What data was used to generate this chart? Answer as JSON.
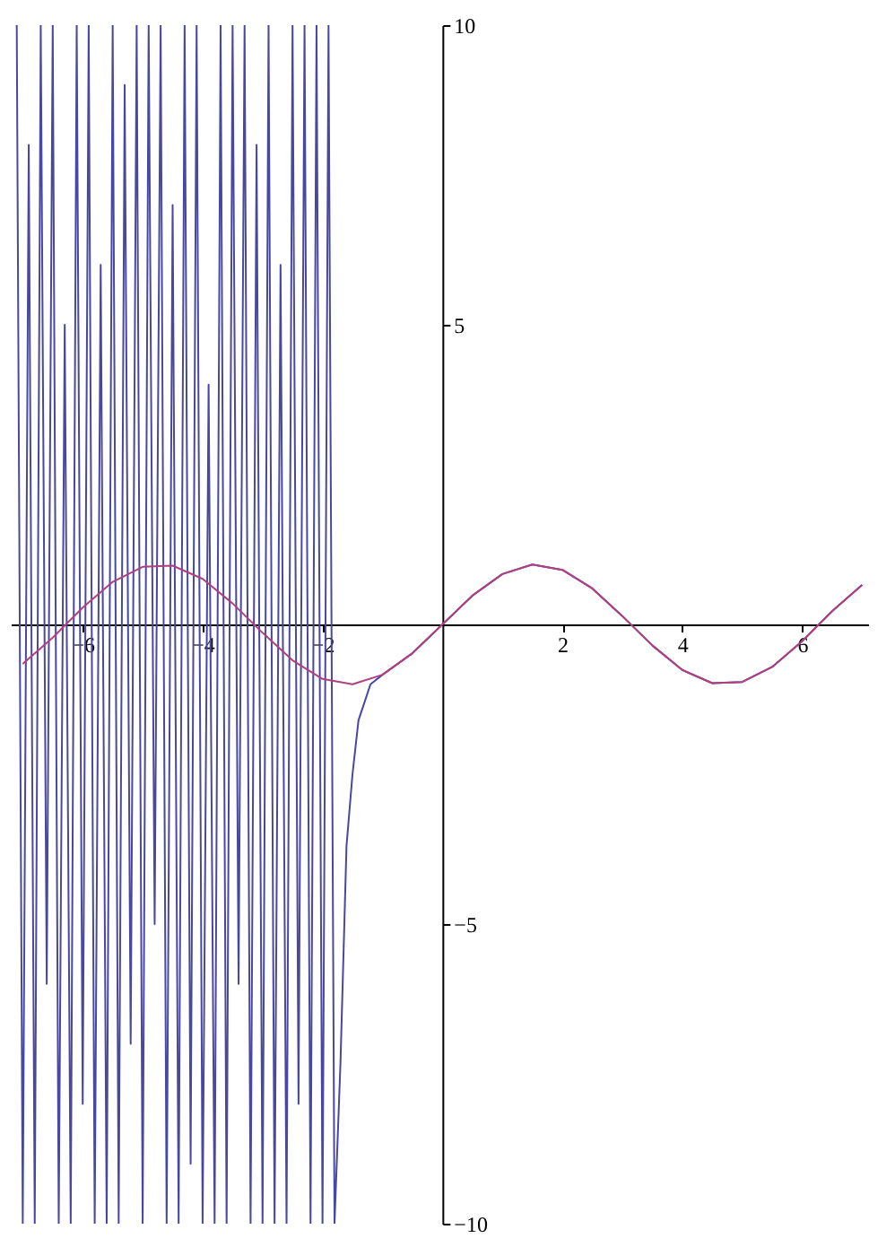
{
  "chart_data": {
    "type": "line",
    "xlim": [
      -7.2,
      7.1
    ],
    "ylim": [
      -10,
      10
    ],
    "xticks": [
      -6,
      -4,
      -2,
      2,
      4,
      6
    ],
    "yticks": [
      -10,
      -5,
      5,
      10
    ],
    "marker": "none",
    "line_style": "solid",
    "series": [
      {
        "color": "#4848a0",
        "x": [
          -7.1,
          -7.0,
          -6.9,
          -6.8,
          -6.7,
          -6.6,
          -6.5,
          -6.4,
          -6.3,
          -6.2,
          -6.1,
          -6.0,
          -5.9,
          -5.8,
          -5.7,
          -5.6,
          -5.5,
          -5.4,
          -5.3,
          -5.2,
          -5.1,
          -5.0,
          -4.9,
          -4.8,
          -4.7,
          -4.6,
          -4.5,
          -4.4,
          -4.3,
          -4.2,
          -4.1,
          -4.0,
          -3.9,
          -3.8,
          -3.7,
          -3.6,
          -3.5,
          -3.4,
          -3.3,
          -3.2,
          -3.1,
          -3.0,
          -2.9,
          -2.8,
          -2.7,
          -2.6,
          -2.5,
          -2.4,
          -2.3,
          -2.2,
          -2.1,
          -2.0,
          -1.9,
          -1.8,
          -1.7,
          -1.6,
          -1.5,
          -1.4,
          -1.3,
          -1.2,
          -1.0,
          -0.5,
          0,
          0.5,
          1,
          1.5,
          2,
          2.5,
          3,
          3.5,
          4,
          4.5,
          5,
          5.5,
          6,
          6.5,
          7
        ],
        "values": [
          10,
          -10,
          8,
          -10,
          10,
          -6,
          10,
          -10,
          5,
          -10,
          10,
          -8,
          10,
          -10,
          6,
          -10,
          10,
          -10,
          9,
          -7,
          10,
          -10,
          10,
          -5,
          10,
          -10,
          7,
          -10,
          10,
          -9,
          10,
          -10,
          4,
          -10,
          10,
          -10,
          10,
          -6,
          10,
          -10,
          8,
          -10,
          10,
          -10,
          6,
          -10,
          10,
          -8,
          10,
          -10,
          10,
          -10,
          10,
          -10,
          -7.3,
          -3.7,
          -2.5,
          -1.6,
          -1.3,
          -1.0,
          -0.84,
          -0.48,
          0,
          0.48,
          0.84,
          1.0,
          0.91,
          0.6,
          0.14,
          -0.35,
          -0.76,
          -0.98,
          -0.96,
          -0.71,
          -0.28,
          0.22,
          0.66
        ]
      },
      {
        "color": "#b04080",
        "x": [
          -7,
          -6.5,
          -6,
          -5.5,
          -5,
          -4.5,
          -4,
          -3.5,
          -3,
          -2.5,
          -2,
          -1.5,
          -1,
          -0.5,
          0,
          0.5,
          1,
          1.5,
          2,
          2.5,
          3,
          3.5,
          4,
          4.5,
          5,
          5.5,
          6,
          6.5,
          7
        ],
        "values": [
          -0.66,
          -0.22,
          0.28,
          0.71,
          0.96,
          0.98,
          0.76,
          0.35,
          -0.14,
          -0.6,
          -0.91,
          -1.0,
          -0.84,
          -0.48,
          0,
          0.48,
          0.84,
          1.0,
          0.91,
          0.6,
          0.14,
          -0.35,
          -0.76,
          -0.98,
          -0.96,
          -0.71,
          -0.28,
          0.22,
          0.66
        ]
      }
    ]
  }
}
